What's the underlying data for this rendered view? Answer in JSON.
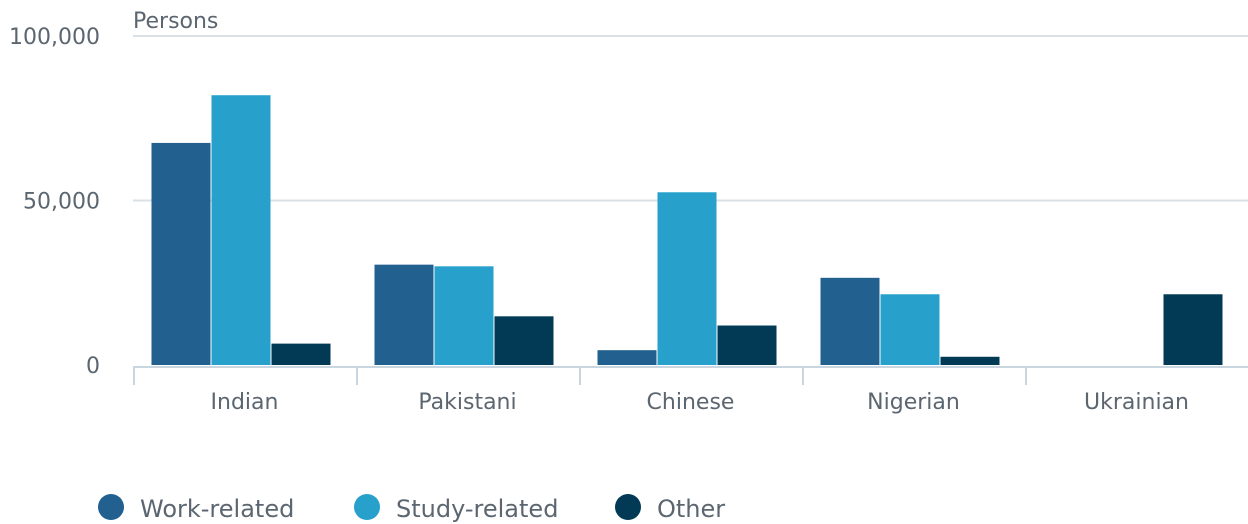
{
  "chart_data": {
    "type": "bar",
    "ylabel": "Persons",
    "categories": [
      "Indian",
      "Pakistani",
      "Chinese",
      "Nigerian",
      "Ukrainian"
    ],
    "series": [
      {
        "name": "Work-related",
        "color": "#21608f",
        "values": [
          67500,
          30500,
          4500,
          26500,
          0
        ]
      },
      {
        "name": "Study-related",
        "color": "#27a1cc",
        "values": [
          82000,
          30000,
          52500,
          21500,
          0
        ]
      },
      {
        "name": "Other",
        "color": "#023a55",
        "values": [
          6500,
          14800,
          12000,
          2500,
          21500
        ]
      }
    ],
    "ylim": [
      0,
      100000
    ],
    "yticks": [
      {
        "value": 0,
        "label": "0"
      },
      {
        "value": 50000,
        "label": "50,000"
      },
      {
        "value": 100000,
        "label": "100,000"
      }
    ],
    "grid": true,
    "legend_position": "bottom-left"
  }
}
